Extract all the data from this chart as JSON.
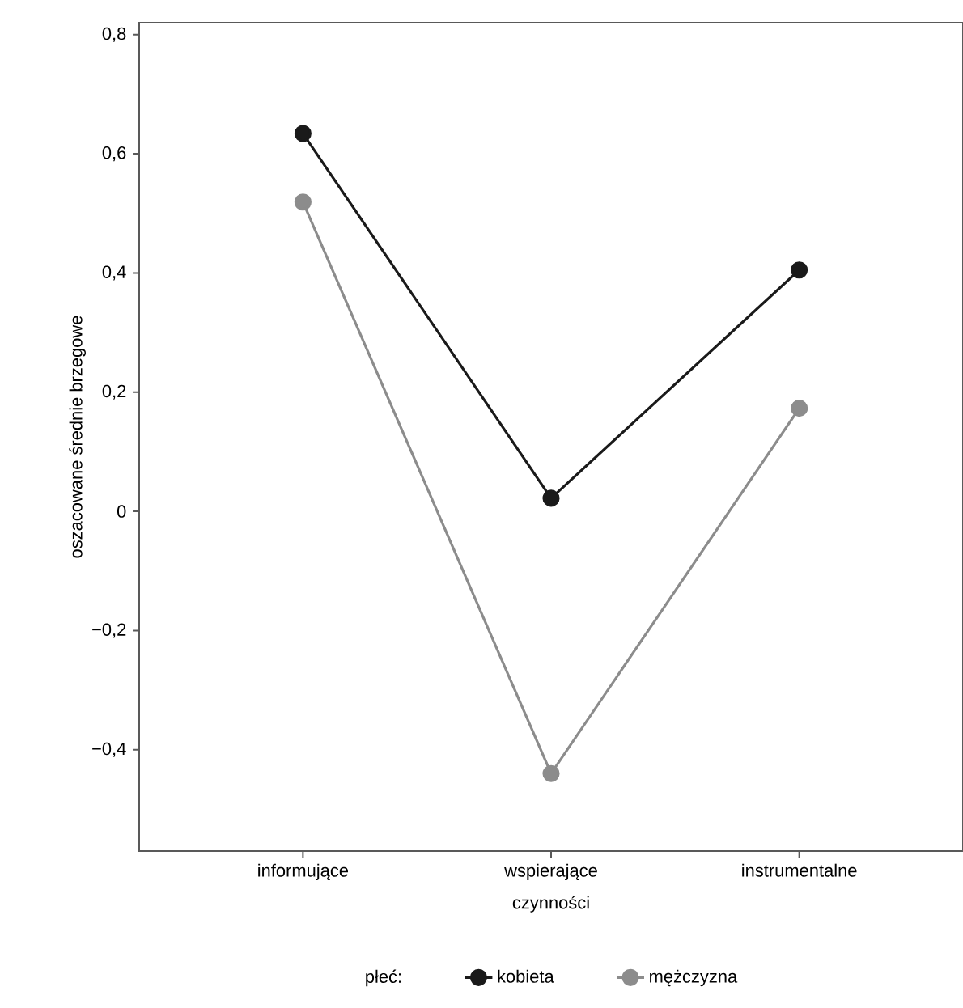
{
  "chart_data": {
    "type": "line",
    "categories": [
      "informujące",
      "wspierające",
      "instrumentalne"
    ],
    "xlabel": "czynności",
    "ylabel": "oszacowane średnie  brzegowe",
    "legend_title": "płeć:",
    "series": [
      {
        "name": "kobieta",
        "color": "#1a1a1a",
        "values": [
          0.634,
          0.022,
          0.405
        ]
      },
      {
        "name": "mężczyzna",
        "color": "#8c8c8c",
        "values": [
          0.519,
          -0.44,
          0.173
        ]
      }
    ],
    "ylim": [
      -0.57,
      0.82
    ],
    "yticks": [
      {
        "value": -0.4,
        "label": "−0,4"
      },
      {
        "value": -0.2,
        "label": "−0,2"
      },
      0,
      {
        "value": 0.2,
        "label": "0,2"
      },
      {
        "value": 0.4,
        "label": "0,4"
      },
      {
        "value": 0.6,
        "label": "0,6"
      },
      {
        "value": 0.8,
        "label": "0,8"
      }
    ],
    "grid": false,
    "legend": "bottom",
    "marker": "circle",
    "line_style": "solid"
  }
}
